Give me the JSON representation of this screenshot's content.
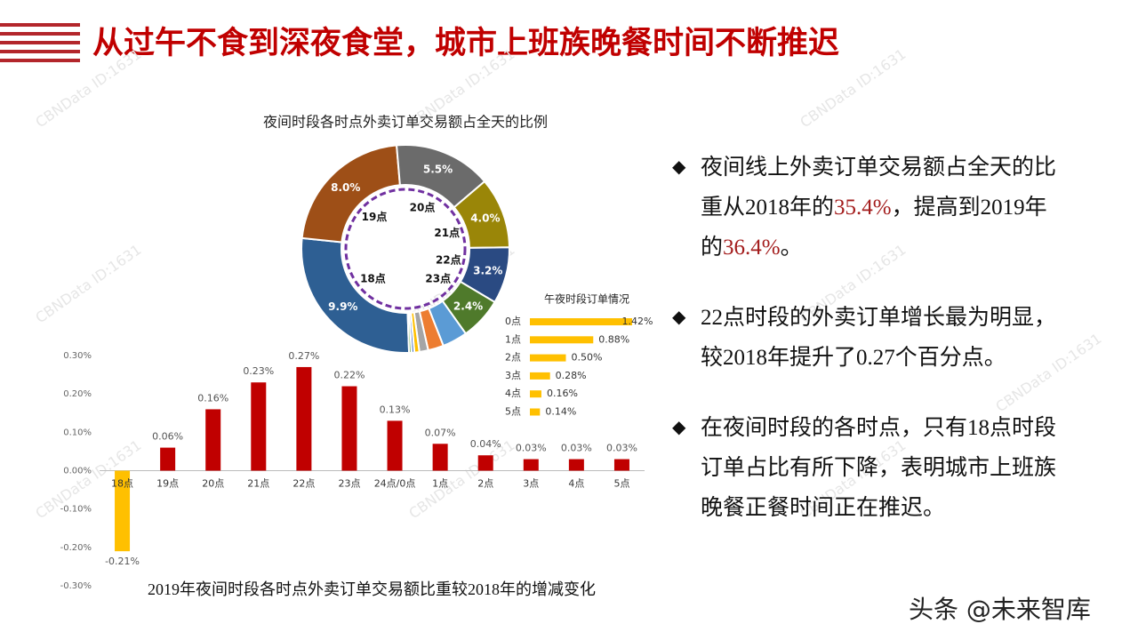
{
  "header": {
    "title": "从过午不食到深夜食堂，城市上班族晚餐时间不断推迟"
  },
  "watermark": "CBNData ID:1631",
  "chart_data": [
    {
      "type": "donut",
      "title": "夜间时段各时点外卖订单交易额占全天的比例",
      "categories": [
        "18点",
        "19点",
        "20点",
        "21点",
        "22点",
        "23点",
        null,
        null,
        null,
        null,
        null,
        null
      ],
      "values": [
        9.9,
        8.0,
        5.5,
        4.0,
        3.2,
        2.4,
        1.42,
        0.88,
        0.5,
        0.28,
        0.16,
        0.14
      ],
      "value_labels": [
        "9.9%",
        "8.0%",
        "5.5%",
        "4.0%",
        "3.2%",
        "2.4%",
        null,
        null,
        null,
        null,
        null,
        null
      ],
      "colors": [
        "#2e5f93",
        "#9e4f17",
        "#6b6b6b",
        "#9a8608",
        "#2a4a82",
        "#4f7a2b",
        "#5b9bd5",
        "#ed7d31",
        "#a5a5a5",
        "#ffc000",
        "#4472c4",
        "#70ad47"
      ]
    },
    {
      "type": "hbar",
      "title": "午夜时段订单情况",
      "categories": [
        "0点",
        "1点",
        "2点",
        "3点",
        "4点",
        "5点"
      ],
      "values": [
        1.42,
        0.88,
        0.5,
        0.28,
        0.16,
        0.14
      ],
      "value_labels": [
        "1.42%",
        "0.88%",
        "0.50%",
        "0.28%",
        "0.16%",
        "0.14%"
      ],
      "color": "#ffc000"
    },
    {
      "type": "bar",
      "title": "2019年夜间时段各时点外卖订单交易额比重较2018年的增减变化",
      "categories": [
        "18点",
        "19点",
        "20点",
        "21点",
        "22点",
        "23点",
        "24点/0点",
        "1点",
        "2点",
        "3点",
        "4点",
        "5点"
      ],
      "values": [
        -0.21,
        0.06,
        0.16,
        0.23,
        0.27,
        0.22,
        0.13,
        0.07,
        0.04,
        0.03,
        0.03,
        0.03
      ],
      "value_labels": [
        "-0.21%",
        "0.06%",
        "0.16%",
        "0.23%",
        "0.27%",
        "0.22%",
        "0.13%",
        "0.07%",
        "0.04%",
        "0.03%",
        "0.03%",
        "0.03%"
      ],
      "colors": [
        "#ffc000",
        "#c00000",
        "#c00000",
        "#c00000",
        "#c00000",
        "#c00000",
        "#c00000",
        "#c00000",
        "#c00000",
        "#c00000",
        "#c00000",
        "#c00000"
      ],
      "ylim": [
        -0.3,
        0.3
      ],
      "yticks": [
        {
          "value": -0.3,
          "label": "-0.30%"
        },
        {
          "value": -0.2,
          "label": "-0.20%"
        },
        {
          "value": -0.1,
          "label": "-0.10%"
        },
        {
          "value": 0,
          "label": "0.00%"
        },
        {
          "value": 0.1,
          "label": "0.10%"
        },
        {
          "value": 0.2,
          "label": "0.20%"
        },
        {
          "value": 0.3,
          "label": "0.30%"
        }
      ]
    }
  ],
  "bullets": [
    [
      "夜间线上外卖订单交易额占全天的比重从2018年的",
      "35.4%",
      "，提高到2019年的",
      "36.4%",
      "。"
    ],
    [
      "22点时段的外卖订单增长最为明显，较2018年提升了0.27个百分点。"
    ],
    [
      "在夜间时段的各时点，只有18点时段订单占比有所下降，表明城市上班族晚餐正餐时间正在推迟。"
    ]
  ],
  "footer": "头条 @未来智库"
}
